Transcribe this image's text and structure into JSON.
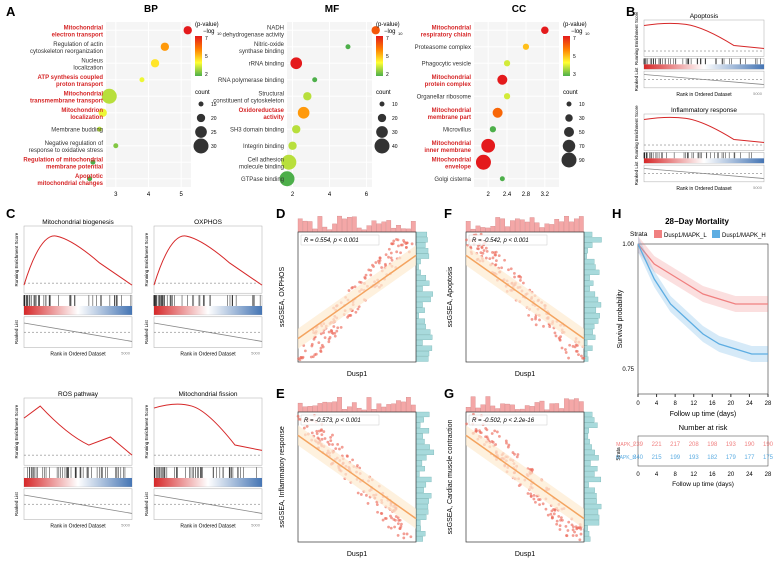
{
  "panels": {
    "A": {
      "label": "A",
      "bp": {
        "title": "BP",
        "terms": [
          {
            "name": "Mitochondrial\nelectron transport",
            "red": true,
            "x": 5.2,
            "pval": 7,
            "count": 20
          },
          {
            "name": "Regulation of actin\ncytoskeleton reorganization",
            "red": false,
            "x": 4.5,
            "pval": 5,
            "count": 20
          },
          {
            "name": "Nucleus\nlocalization",
            "red": false,
            "x": 4.2,
            "pval": 4,
            "count": 20
          },
          {
            "name": "ATP synthesis coupled\nproton transport",
            "red": true,
            "x": 3.8,
            "pval": 3.5,
            "count": 15
          },
          {
            "name": "Mitochondrial\ntransmembrane transport",
            "red": true,
            "x": 2.8,
            "pval": 3,
            "count": 30
          },
          {
            "name": "Mitochondrion\nlocalization",
            "red": true,
            "x": 2.6,
            "pval": 3.5,
            "count": 20
          },
          {
            "name": "Membrane budding",
            "red": false,
            "x": 2.5,
            "pval": 3,
            "count": 15
          },
          {
            "name": "Negative regulation of\nresponse to oxidative stress",
            "red": false,
            "x": 3.0,
            "pval": 2.5,
            "count": 15
          },
          {
            "name": "Regulation of mitochondrial\nmembrane potential",
            "red": true,
            "x": 2.3,
            "pval": 2,
            "count": 15
          },
          {
            "name": "Apoptotic\nmitochondrial changes",
            "red": true,
            "x": 2.2,
            "pval": 2,
            "count": 15
          }
        ],
        "xticks": [
          3,
          4,
          5
        ],
        "pval_range": [
          2,
          7
        ],
        "count_legend": [
          15,
          20,
          25,
          30
        ]
      },
      "mf": {
        "title": "MF",
        "terms": [
          {
            "name": "NADH\ndehydrogenase activity",
            "red": false,
            "x": 6.5,
            "pval": 6,
            "count": 20
          },
          {
            "name": "Nitric-oxide\nsynthase binding",
            "red": false,
            "x": 5.0,
            "pval": 2,
            "count": 10
          },
          {
            "name": "rRNA binding",
            "red": false,
            "x": 2.2,
            "pval": 7,
            "count": 30
          },
          {
            "name": "RNA polymerase binding",
            "red": false,
            "x": 3.2,
            "pval": 2,
            "count": 10
          },
          {
            "name": "Structural\nconstituent of cytoskeleton",
            "red": false,
            "x": 2.8,
            "pval": 3,
            "count": 20
          },
          {
            "name": "Oxidoreductase\nactivity",
            "red": true,
            "x": 2.6,
            "pval": 5,
            "count": 30
          },
          {
            "name": "SH3 domain binding",
            "red": false,
            "x": 2.2,
            "pval": 3,
            "count": 20
          },
          {
            "name": "Integrin binding",
            "red": false,
            "x": 2.0,
            "pval": 3,
            "count": 20
          },
          {
            "name": "Cell adhesion\nmolecule binding",
            "red": false,
            "x": 1.8,
            "pval": 3,
            "count": 40
          },
          {
            "name": "GTPase binding",
            "red": false,
            "x": 1.7,
            "pval": 2,
            "count": 40
          }
        ],
        "xticks": [
          2,
          4,
          6
        ],
        "pval_range": [
          2,
          7
        ],
        "count_legend": [
          10,
          20,
          30,
          40
        ]
      },
      "cc": {
        "title": "CC",
        "terms": [
          {
            "name": "Mitochondrial\nrespiratory chiain",
            "red": true,
            "x": 3.2,
            "pval": 7,
            "count": 30
          },
          {
            "name": "Proteasome complex",
            "red": false,
            "x": 2.8,
            "pval": 5,
            "count": 20
          },
          {
            "name": "Phagocytic vesicle",
            "red": false,
            "x": 2.4,
            "pval": 4,
            "count": 20
          },
          {
            "name": "Mitochondrial\nprotein complex",
            "red": true,
            "x": 2.3,
            "pval": 7,
            "count": 50
          },
          {
            "name": "Organellar ribosome",
            "red": false,
            "x": 2.4,
            "pval": 4,
            "count": 20
          },
          {
            "name": "Mitochondrial\nmembrane part",
            "red": true,
            "x": 2.2,
            "pval": 6,
            "count": 50
          },
          {
            "name": "Microvillus",
            "red": false,
            "x": 2.1,
            "pval": 3,
            "count": 20
          },
          {
            "name": "Mitochondrial\ninner membrane",
            "red": true,
            "x": 2.0,
            "pval": 7,
            "count": 80
          },
          {
            "name": "Mitochondrial\nenvelope",
            "red": true,
            "x": 1.9,
            "pval": 7,
            "count": 90
          },
          {
            "name": "Golgi cisterna",
            "red": false,
            "x": 2.3,
            "pval": 2,
            "count": 10
          }
        ],
        "xticks": [
          2.0,
          2.4,
          2.8,
          3.2
        ],
        "pval_range": [
          3,
          7
        ],
        "count_legend": [
          10,
          30,
          50,
          70,
          90
        ]
      },
      "legend_title_pval": "(p-value)\n−log₁₀",
      "legend_title_count": "count",
      "colorbar_colors": [
        "#4daf4a",
        "#ffff33",
        "#ff7f00",
        "#e41a1c"
      ]
    },
    "B": {
      "label": "B",
      "plots": [
        {
          "title": "Apoptosis",
          "direction": "down"
        },
        {
          "title": "Inflammatory response",
          "direction": "down"
        }
      ],
      "ylabel": "Running Enrichment Score",
      "xlabel": "Rank in Ordered Dataset",
      "ylabel2": "Ranked List"
    },
    "C": {
      "label": "C",
      "plots": [
        {
          "title": "Mitochondrial biogenesis",
          "direction": "up"
        },
        {
          "title": "OXPHOS",
          "direction": "up"
        },
        {
          "title": "ROS pathway",
          "direction": "down2"
        },
        {
          "title": "Mitochondrial fission",
          "direction": "down"
        }
      ],
      "ylabel": "Running Enrichment Score",
      "xlabel": "Rank in Ordered Dataset",
      "ylabel2": "Ranked List"
    },
    "D": {
      "label": "D",
      "stat": "R = 0.554, p < 0.001",
      "xlabel": "Dusp1",
      "ylabel": "ssGSEA, OXPHOS",
      "slope": "pos"
    },
    "E": {
      "label": "E",
      "stat": "R = -0.573, p < 0.001",
      "xlabel": "Dusp1",
      "ylabel": "ssGSEA, Inflammatory response",
      "slope": "neg"
    },
    "F": {
      "label": "F",
      "stat": "R = -0.542, p < 0.001",
      "xlabel": "Dusp1",
      "ylabel": "ssGSEA, Apoptosis",
      "slope": "neg"
    },
    "G": {
      "label": "G",
      "stat": "R = -0.502, p < 2.2e-16",
      "xlabel": "Dusp1",
      "ylabel": "ssGSEA, Cardiac muscle contraction",
      "slope": "neg"
    },
    "H": {
      "label": "H",
      "title": "28−Day Mortality",
      "strata_label": "Strata",
      "strata": [
        {
          "name": "Dusp1/MAPK_L",
          "color": "#f08080"
        },
        {
          "name": "Dusp1/MAPK_H",
          "color": "#5dade2"
        }
      ],
      "ylabel": "Survival probability",
      "xlabel": "Follow up time (days)",
      "xticks": [
        0,
        4,
        8,
        12,
        16,
        20,
        24,
        28
      ],
      "yticks": [
        0.75,
        1.0
      ],
      "risk_title": "Number at risk",
      "risk_table": [
        [
          "239",
          "221",
          "217",
          "208",
          "198",
          "193",
          "190",
          "190"
        ],
        [
          "240",
          "215",
          "199",
          "193",
          "182",
          "179",
          "177",
          "175"
        ]
      ]
    }
  },
  "colors": {
    "scatter_point": "#ed6a5a",
    "hist_x": "#f4a7a7",
    "hist_y": "#a8dadc",
    "fit_line": "#f4a460",
    "fit_ci": "#fdebd0",
    "gsea_line": "#d62728",
    "barcode_red": "#d62728",
    "barcode_blue": "#4575b4"
  }
}
